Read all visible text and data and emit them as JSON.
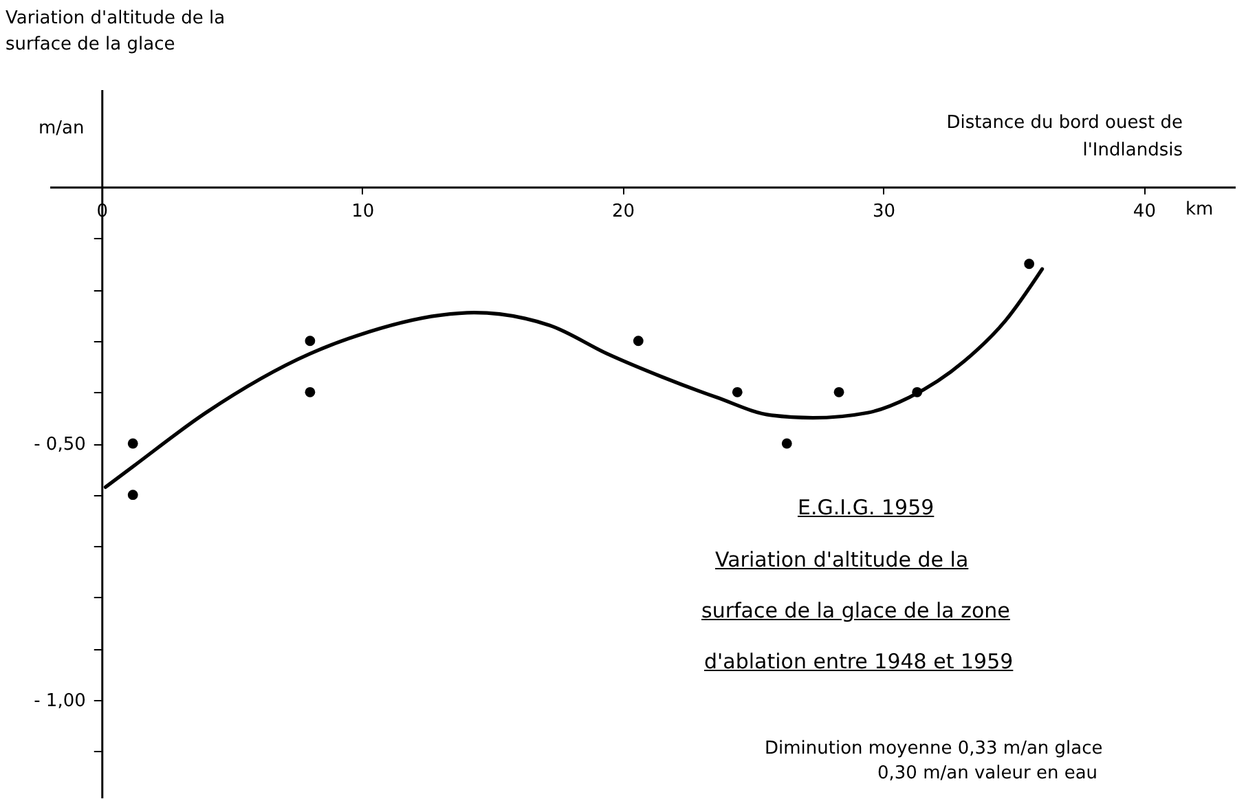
{
  "chart_data": {
    "type": "scatter",
    "ylabel": "Variation d'altitude de la surface de la glace",
    "xlabel": "Distance du bord ouest de l'Indlandsis",
    "annotations": [
      "m/an",
      "km",
      "E.G.I.G. 1959",
      "Variation d'altitude de la",
      "surface de la glace de la zone",
      "d'ablation entre 1948 et 1959",
      "Diminution moyenne 0,33 m/an glace",
      "0,30 m/an valeur en eau"
    ],
    "xlim": [
      -2,
      43.5
    ],
    "xticks": [
      0,
      10,
      20,
      30,
      40
    ],
    "ylim": [
      -1.19,
      0.19
    ],
    "yticks": [
      {
        "value": -0.1,
        "label": null
      },
      {
        "value": -0.2,
        "label": null
      },
      {
        "value": -0.3,
        "label": null
      },
      {
        "value": -0.4,
        "label": null
      },
      {
        "value": -0.5,
        "label": "- 0,50"
      },
      {
        "value": -0.6,
        "label": null
      },
      {
        "value": -0.7,
        "label": null
      },
      {
        "value": -0.8,
        "label": null
      },
      {
        "value": -0.9,
        "label": null
      },
      {
        "value": -1.0,
        "label": "- 1,00"
      },
      {
        "value": -1.1,
        "label": null
      }
    ],
    "series": [
      {
        "marker": "circle",
        "color": "#000000",
        "x": [
          1.2,
          1.2,
          8.0,
          8.0,
          20.6,
          24.4,
          26.3,
          28.3,
          31.3,
          35.6
        ],
        "values": [
          -0.5,
          -0.6,
          -0.3,
          -0.4,
          -0.3,
          -0.4,
          -0.5,
          -0.4,
          -0.4,
          -0.15
        ]
      },
      {
        "type": "line",
        "marker": "none",
        "color": "#000000",
        "x": [
          0.15,
          1.2,
          4.0,
          8.0,
          9.8,
          13.0,
          14.3,
          17.2,
          19.4,
          21.5,
          23.6,
          25.7,
          27.3,
          29.4,
          31.0,
          33.1,
          34.7,
          36.1
        ],
        "values": [
          -0.585,
          -0.545,
          -0.44,
          -0.325,
          -0.29,
          -0.25,
          -0.245,
          -0.27,
          -0.325,
          -0.37,
          -0.41,
          -0.445,
          -0.45,
          -0.44,
          -0.41,
          -0.34,
          -0.26,
          -0.16
        ]
      }
    ]
  }
}
